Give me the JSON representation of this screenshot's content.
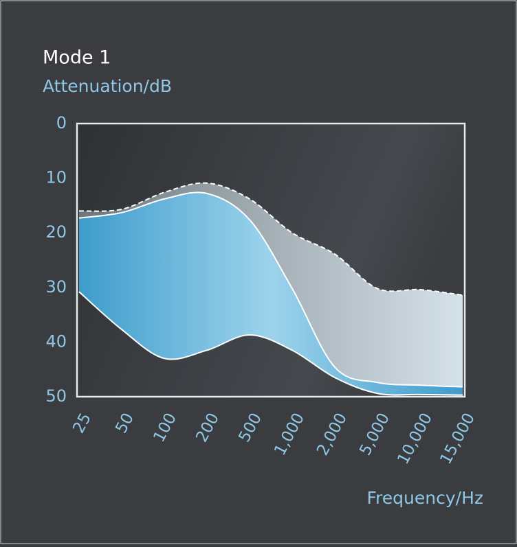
{
  "chart_data": {
    "type": "area",
    "title": "Mode 1",
    "ylabel": "Attenuation/dB",
    "xlabel": "Frequency/Hz",
    "categories": [
      "25",
      "50",
      "100",
      "200",
      "500",
      "1,000",
      "2,000",
      "5,000",
      "10,000",
      "15,000"
    ],
    "series": [
      {
        "color": "#ffffff",
        "line_style": "dashed",
        "fill": "#a9b5bd",
        "fill_to": 1,
        "values": [
          16,
          15.7,
          12.6,
          10.9,
          13.8,
          20,
          23.9,
          30.2,
          30.4,
          31.4
        ]
      },
      {
        "color": "#ffffff",
        "line_style": "solid",
        "fill": "#8ccbe8",
        "fill_to": 2,
        "values": [
          17.3,
          16.3,
          13.8,
          12.8,
          17.6,
          30.2,
          44.6,
          47.4,
          47.9,
          48.2
        ]
      },
      {
        "color": "#ffffff",
        "line_style": "solid",
        "values": [
          30.8,
          37.7,
          43,
          41.5,
          38.7,
          41.5,
          46.5,
          49.4,
          49.6,
          49.7
        ]
      }
    ],
    "ylim": [
      0,
      50
    ],
    "y_inverted": true,
    "yticks": [
      0,
      10,
      20,
      30,
      40,
      50
    ]
  }
}
